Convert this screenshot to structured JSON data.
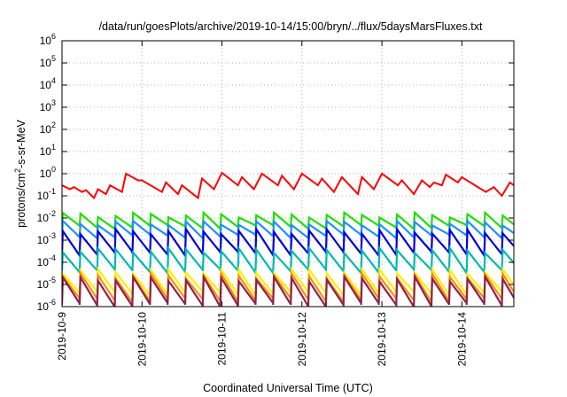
{
  "chart_data": {
    "type": "line",
    "title": "/data/run/goesPlots/archive/2019-10-14/15:00/bryn/../flux/5daysMarsFluxes.txt",
    "xlabel": "Coordinated Universal Time (UTC)",
    "ylabel_parts": [
      "protons/cm",
      "2",
      "-s-sr-MeV"
    ],
    "y_scale": "log",
    "ylim": [
      1e-06,
      1000000.0
    ],
    "y_ticks": [
      {
        "base": "10",
        "exp": "-6"
      },
      {
        "base": "10",
        "exp": "-5"
      },
      {
        "base": "10",
        "exp": "-4"
      },
      {
        "base": "10",
        "exp": "-3"
      },
      {
        "base": "10",
        "exp": "-2"
      },
      {
        "base": "10",
        "exp": "-1"
      },
      {
        "base": "10",
        "exp": "0"
      },
      {
        "base": "10",
        "exp": "1"
      },
      {
        "base": "10",
        "exp": "2"
      },
      {
        "base": "10",
        "exp": "3"
      },
      {
        "base": "10",
        "exp": "4"
      },
      {
        "base": "10",
        "exp": "5"
      },
      {
        "base": "10",
        "exp": "6"
      }
    ],
    "x_ticks": [
      "2019-10-9",
      "2019-10-10",
      "2019-10-11",
      "2019-10-12",
      "2019-10-13",
      "2019-10-14"
    ],
    "xlim_days": [
      0,
      5.65
    ],
    "grid": true,
    "series": [
      {
        "color": "#ff0000",
        "x": [
          0.0,
          0.1,
          0.15,
          0.25,
          0.3,
          0.4,
          0.45,
          0.55,
          0.6,
          0.75,
          0.8,
          0.95,
          1.0,
          1.25,
          1.3,
          1.45,
          1.5,
          1.7,
          1.75,
          1.9,
          2.0,
          2.2,
          2.25,
          2.4,
          2.5,
          2.7,
          2.75,
          2.9,
          3.0,
          3.2,
          3.25,
          3.4,
          3.5,
          3.7,
          3.75,
          3.9,
          4.0,
          4.2,
          4.25,
          4.4,
          4.5,
          4.6,
          4.65,
          4.75,
          4.8,
          4.95,
          5.0,
          5.2,
          5.3,
          5.4,
          5.5,
          5.6,
          5.65
        ],
        "y": [
          0.3,
          0.2,
          0.25,
          0.15,
          0.18,
          0.08,
          0.2,
          0.12,
          0.3,
          0.15,
          1.0,
          0.5,
          0.5,
          0.15,
          0.4,
          0.12,
          0.3,
          0.08,
          0.6,
          0.2,
          1.1,
          0.3,
          0.7,
          0.2,
          1.0,
          0.3,
          0.8,
          0.2,
          1.0,
          0.3,
          0.6,
          0.15,
          0.7,
          0.12,
          0.7,
          0.2,
          1.0,
          0.3,
          0.5,
          0.12,
          0.5,
          0.25,
          0.4,
          0.3,
          0.9,
          0.4,
          0.7,
          0.25,
          0.15,
          0.25,
          0.1,
          0.4,
          0.3
        ]
      },
      {
        "color": "#1fe000",
        "period": 0.22,
        "peak": 0.014,
        "trough": 0.004,
        "decay": 1.0
      },
      {
        "color": "#1e90ff",
        "period": 0.22,
        "peak": 0.006,
        "trough": 0.0015,
        "decay": 1.0
      },
      {
        "color": "#0000dd",
        "period": 0.22,
        "peak": 0.0025,
        "trough": 0.00025,
        "decay": 1.0
      },
      {
        "color": "#00b8b0",
        "period": 0.22,
        "peak": 0.00035,
        "trough": 4e-05,
        "decay": 1.0
      },
      {
        "color": "#ffee00",
        "period": 0.22,
        "peak": 4e-05,
        "trough": 4e-06,
        "decay": 1.0
      },
      {
        "color": "#ff8c00",
        "period": 0.22,
        "peak": 2.5e-05,
        "trough": 2e-06,
        "decay": 1.0
      },
      {
        "color": "#8b2252",
        "period": 0.22,
        "peak": 1.8e-05,
        "trough": 1.2e-06,
        "decay": 1.0
      }
    ]
  }
}
